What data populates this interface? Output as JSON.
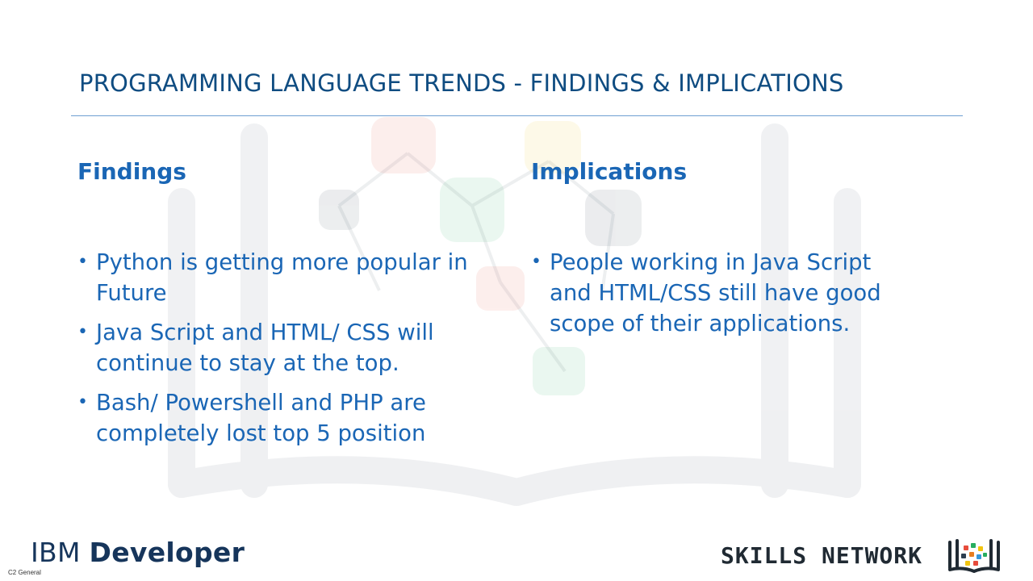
{
  "slide": {
    "title": "PROGRAMMING LANGUAGE TRENDS - FINDINGS & IMPLICATIONS",
    "findings": {
      "heading": "Findings",
      "items": [
        "Python is getting more popular in Future",
        "Java Script and HTML/ CSS will continue to stay at the top.",
        "Bash/ Powershell and PHP are completely lost top 5 position"
      ]
    },
    "implications": {
      "heading": "Implications",
      "items": [
        "People working in Java Script and HTML/CSS still have good scope of their applications."
      ]
    }
  },
  "footer": {
    "ibm_logo_prefix": "IBM",
    "ibm_logo_word": "Developer",
    "classification": "C2 General",
    "skills_network": "SKILLS NETWORK"
  },
  "colors": {
    "title": "#0f4c81",
    "text": "#1a66b5",
    "rule": "#6f9fd2"
  },
  "icons": [
    "skills-network-book-icon",
    "watermark-book-network"
  ]
}
